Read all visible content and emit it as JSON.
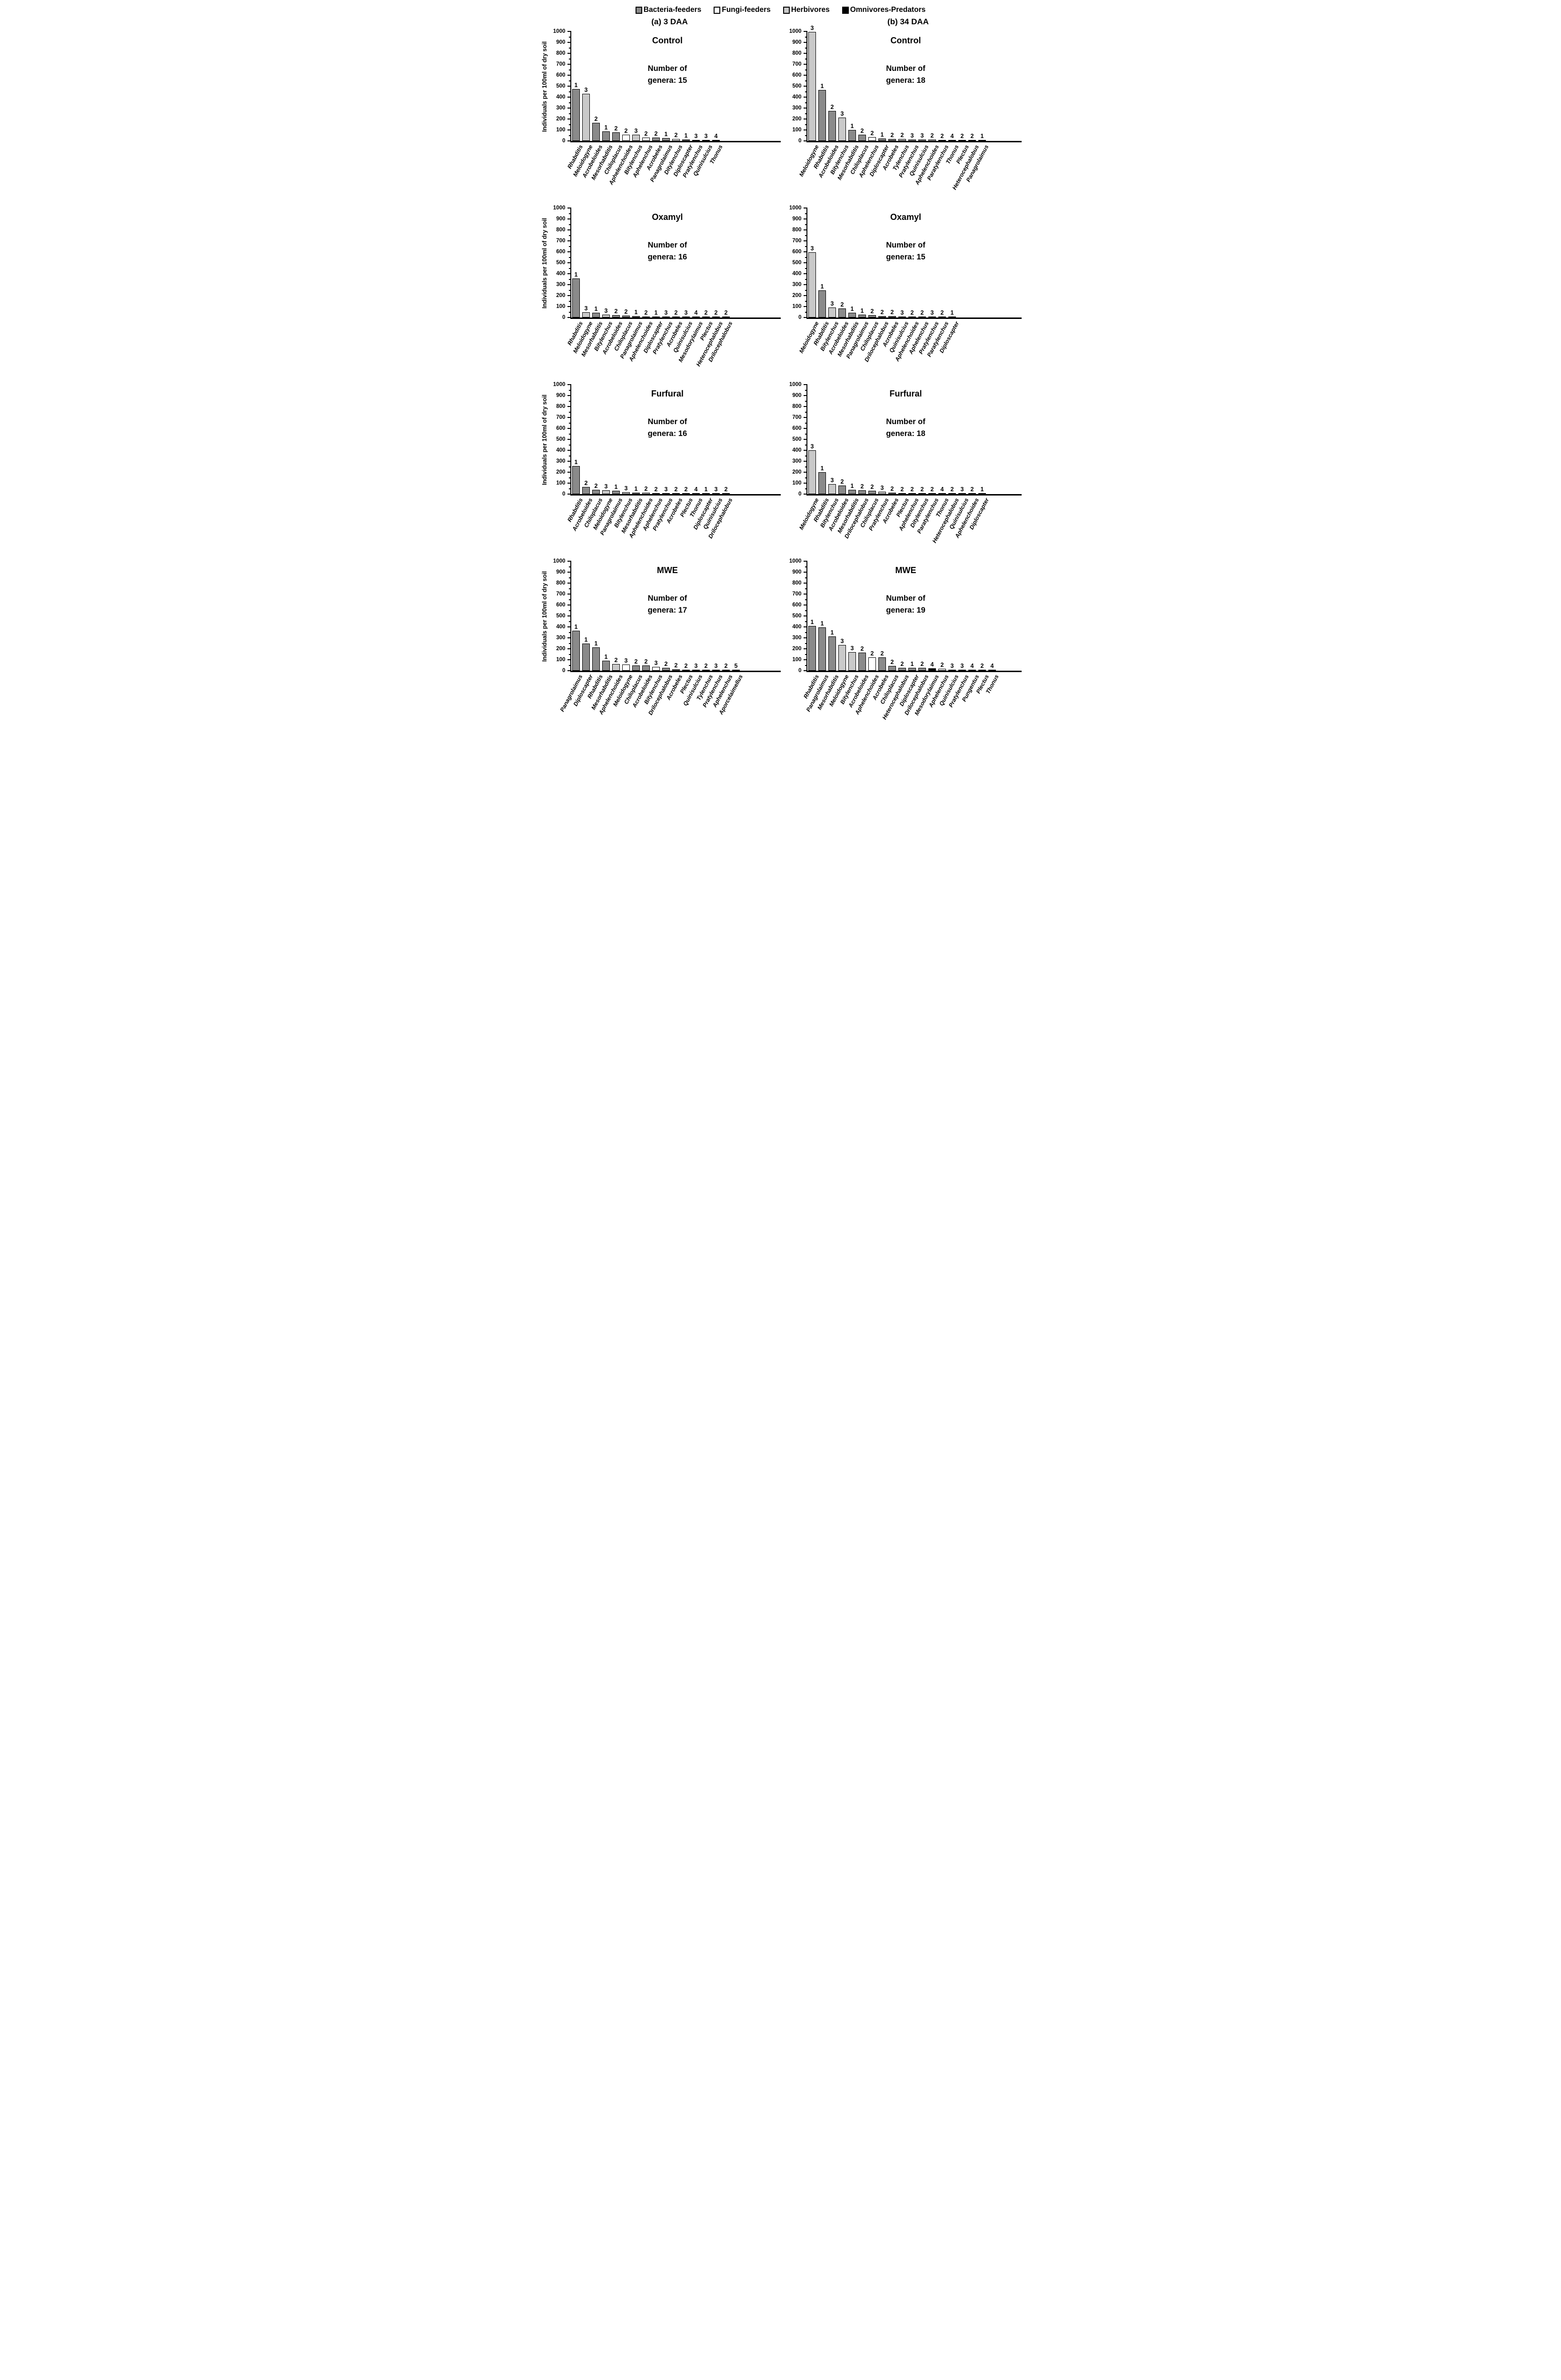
{
  "legend": {
    "items": [
      {
        "label": "Bacteria-feeders",
        "fill": "dark"
      },
      {
        "label": "Fungi-feeders",
        "fill": "white"
      },
      {
        "label": "Herbivores",
        "fill": "light"
      },
      {
        "label": "Omnivores-Predators",
        "fill": "black"
      }
    ]
  },
  "column_headers": {
    "a": "(a) 3 DAA",
    "b": "(b) 34 DAA"
  },
  "y_axis": {
    "label": "Individuals per 100ml of dry soil",
    "min": 0,
    "max": 1000,
    "major_step": 100,
    "minor_step": 50,
    "tick_labels": [
      "0",
      "100",
      "200",
      "300",
      "400",
      "500",
      "600",
      "700",
      "800",
      "900",
      "1000"
    ]
  },
  "colors": {
    "dark": "#8a8a8a",
    "light": "#c9c9c9",
    "white": "#ffffff",
    "black": "#000000"
  },
  "chart_data": [
    {
      "type": "bar",
      "column": "a",
      "treatment": "Control",
      "annotation_lines": [
        "Number of",
        "genera: 15"
      ],
      "ylim": [
        0,
        1000
      ],
      "grid": false,
      "bars": [
        {
          "genus": "Rhabditis",
          "value": 475,
          "cp": "1",
          "fill": "dark"
        },
        {
          "genus": "Meloidogyne",
          "value": 430,
          "cp": "3",
          "fill": "light"
        },
        {
          "genus": "Acrobeloides",
          "value": 165,
          "cp": "2",
          "fill": "dark"
        },
        {
          "genus": "Mesorhabditis",
          "value": 85,
          "cp": "1",
          "fill": "dark"
        },
        {
          "genus": "Chiloplacus",
          "value": 80,
          "cp": "2",
          "fill": "dark"
        },
        {
          "genus": "Aphelenchoides",
          "value": 57,
          "cp": "2",
          "fill": "white"
        },
        {
          "genus": "Bitylenchus",
          "value": 57,
          "cp": "3",
          "fill": "light"
        },
        {
          "genus": "Aphelenchus",
          "value": 32,
          "cp": "2",
          "fill": "white"
        },
        {
          "genus": "Acrobeles",
          "value": 30,
          "cp": "2",
          "fill": "dark"
        },
        {
          "genus": "Panagrolaimus",
          "value": 25,
          "cp": "1",
          "fill": "dark"
        },
        {
          "genus": "Ditylenchus",
          "value": 18,
          "cp": "2",
          "fill": "white"
        },
        {
          "genus": "Diploscapter",
          "value": 13,
          "cp": "1",
          "fill": "dark"
        },
        {
          "genus": "Pratylenchus",
          "value": 10,
          "cp": "3",
          "fill": "light"
        },
        {
          "genus": "Quinisulcius",
          "value": 10,
          "cp": "3",
          "fill": "light"
        },
        {
          "genus": "Thonus",
          "value": 7,
          "cp": "4",
          "fill": "black"
        }
      ]
    },
    {
      "type": "bar",
      "column": "b",
      "treatment": "Control",
      "annotation_lines": [
        "Number of",
        "genera: 18"
      ],
      "ylim": [
        0,
        1000
      ],
      "grid": false,
      "bars": [
        {
          "genus": "Meloidogyne",
          "value": 995,
          "cp": "3",
          "fill": "light"
        },
        {
          "genus": "Rhabditis",
          "value": 465,
          "cp": "1",
          "fill": "dark"
        },
        {
          "genus": "Acrobeloides",
          "value": 275,
          "cp": "2",
          "fill": "dark"
        },
        {
          "genus": "Bitylenchus",
          "value": 215,
          "cp": "3",
          "fill": "light"
        },
        {
          "genus": "Mesorhabditis",
          "value": 98,
          "cp": "1",
          "fill": "dark"
        },
        {
          "genus": "Chiloplacus",
          "value": 58,
          "cp": "2",
          "fill": "dark"
        },
        {
          "genus": "Aphelenchus",
          "value": 35,
          "cp": "2",
          "fill": "white"
        },
        {
          "genus": "Diploscapter",
          "value": 20,
          "cp": "1",
          "fill": "dark"
        },
        {
          "genus": "Acrobeles",
          "value": 19,
          "cp": "2",
          "fill": "dark"
        },
        {
          "genus": "Tylenchus",
          "value": 16,
          "cp": "2",
          "fill": "light"
        },
        {
          "genus": "Pratylenchus",
          "value": 15,
          "cp": "3",
          "fill": "light"
        },
        {
          "genus": "Quinisulcius",
          "value": 13,
          "cp": "3",
          "fill": "light"
        },
        {
          "genus": "Aphelenchoides",
          "value": 13,
          "cp": "2",
          "fill": "white"
        },
        {
          "genus": "Paratylenchus",
          "value": 8,
          "cp": "2",
          "fill": "light"
        },
        {
          "genus": "Thonus",
          "value": 8,
          "cp": "4",
          "fill": "black"
        },
        {
          "genus": "Plectus",
          "value": 6,
          "cp": "2",
          "fill": "dark"
        },
        {
          "genus": "Heterocephalobus",
          "value": 6,
          "cp": "2",
          "fill": "dark"
        },
        {
          "genus": "Panagrolaimus",
          "value": 5,
          "cp": "1",
          "fill": "dark"
        }
      ]
    },
    {
      "type": "bar",
      "column": "a",
      "treatment": "Oxamyl",
      "annotation_lines": [
        "Number of",
        "genera: 16"
      ],
      "ylim": [
        0,
        1000
      ],
      "grid": false,
      "bars": [
        {
          "genus": "Rhabditis",
          "value": 355,
          "cp": "1",
          "fill": "dark"
        },
        {
          "genus": "Meloidogyne",
          "value": 48,
          "cp": "3",
          "fill": "light"
        },
        {
          "genus": "Mesorhabditis",
          "value": 42,
          "cp": "1",
          "fill": "dark"
        },
        {
          "genus": "Bitylenchus",
          "value": 28,
          "cp": "3",
          "fill": "light"
        },
        {
          "genus": "Acrobeloides",
          "value": 20,
          "cp": "2",
          "fill": "dark"
        },
        {
          "genus": "Chiloplacus",
          "value": 17,
          "cp": "2",
          "fill": "dark"
        },
        {
          "genus": "Panagrolaimus",
          "value": 13,
          "cp": "1",
          "fill": "dark"
        },
        {
          "genus": "Aphelenchoides",
          "value": 9,
          "cp": "2",
          "fill": "white"
        },
        {
          "genus": "Diploscapter",
          "value": 5,
          "cp": "1",
          "fill": "dark"
        },
        {
          "genus": "Pratylenchus",
          "value": 4,
          "cp": "3",
          "fill": "light"
        },
        {
          "genus": "Acrobeles",
          "value": 4,
          "cp": "2",
          "fill": "dark"
        },
        {
          "genus": "Quinisulcius",
          "value": 3,
          "cp": "3",
          "fill": "light"
        },
        {
          "genus": "Mesodorylaimus",
          "value": 3,
          "cp": "4",
          "fill": "black"
        },
        {
          "genus": "Plectus",
          "value": 2,
          "cp": "2",
          "fill": "dark"
        },
        {
          "genus": "Heterocephalobus",
          "value": 2,
          "cp": "2",
          "fill": "dark"
        },
        {
          "genus": "Drilocephalobus",
          "value": 2,
          "cp": "2",
          "fill": "dark"
        }
      ]
    },
    {
      "type": "bar",
      "column": "b",
      "treatment": "Oxamyl",
      "annotation_lines": [
        "Number of",
        "genera: 15"
      ],
      "ylim": [
        0,
        1000
      ],
      "grid": false,
      "bars": [
        {
          "genus": "Meloidogyne",
          "value": 595,
          "cp": "3",
          "fill": "light"
        },
        {
          "genus": "Rhabditis",
          "value": 248,
          "cp": "1",
          "fill": "dark"
        },
        {
          "genus": "Bitylenchus",
          "value": 93,
          "cp": "3",
          "fill": "light"
        },
        {
          "genus": "Acrobeloides",
          "value": 83,
          "cp": "2",
          "fill": "dark"
        },
        {
          "genus": "Mesorhabditis",
          "value": 45,
          "cp": "1",
          "fill": "dark"
        },
        {
          "genus": "Panagrolaimus",
          "value": 25,
          "cp": "1",
          "fill": "dark"
        },
        {
          "genus": "Chiloplacus",
          "value": 22,
          "cp": "2",
          "fill": "dark"
        },
        {
          "genus": "Drilocephalobus",
          "value": 15,
          "cp": "2",
          "fill": "dark"
        },
        {
          "genus": "Acrobeles",
          "value": 13,
          "cp": "2",
          "fill": "dark"
        },
        {
          "genus": "Quinisulcius",
          "value": 8,
          "cp": "3",
          "fill": "light"
        },
        {
          "genus": "Aphelenchoides",
          "value": 7,
          "cp": "2",
          "fill": "white"
        },
        {
          "genus": "Aphelenchus",
          "value": 6,
          "cp": "2",
          "fill": "white"
        },
        {
          "genus": "Pratylenchus",
          "value": 5,
          "cp": "3",
          "fill": "light"
        },
        {
          "genus": "Paratylenchus",
          "value": 4,
          "cp": "2",
          "fill": "light"
        },
        {
          "genus": "Diploscapter",
          "value": 2,
          "cp": "1",
          "fill": "dark"
        }
      ]
    },
    {
      "type": "bar",
      "column": "a",
      "treatment": "Furfural",
      "annotation_lines": [
        "Number of",
        "genera: 16"
      ],
      "ylim": [
        0,
        1000
      ],
      "grid": false,
      "bars": [
        {
          "genus": "Rhabditis",
          "value": 255,
          "cp": "1",
          "fill": "dark"
        },
        {
          "genus": "Acrobeloides",
          "value": 65,
          "cp": "2",
          "fill": "dark"
        },
        {
          "genus": "Chiloplacus",
          "value": 38,
          "cp": "2",
          "fill": "dark"
        },
        {
          "genus": "Meloidogyne",
          "value": 36,
          "cp": "3",
          "fill": "light"
        },
        {
          "genus": "Panagrolaimus",
          "value": 32,
          "cp": "1",
          "fill": "dark"
        },
        {
          "genus": "Bitylenchus",
          "value": 18,
          "cp": "3",
          "fill": "light"
        },
        {
          "genus": "Mesorhabditis",
          "value": 15,
          "cp": "1",
          "fill": "dark"
        },
        {
          "genus": "Aphelenchoides",
          "value": 12,
          "cp": "2",
          "fill": "white"
        },
        {
          "genus": "Aphelenchus",
          "value": 9,
          "cp": "2",
          "fill": "white"
        },
        {
          "genus": "Pratylenchus",
          "value": 5,
          "cp": "3",
          "fill": "light"
        },
        {
          "genus": "Acrobeles",
          "value": 4,
          "cp": "2",
          "fill": "dark"
        },
        {
          "genus": "Plectus",
          "value": 4,
          "cp": "2",
          "fill": "dark"
        },
        {
          "genus": "Thonus",
          "value": 3,
          "cp": "4",
          "fill": "black"
        },
        {
          "genus": "Diploscapter",
          "value": 3,
          "cp": "1",
          "fill": "dark"
        },
        {
          "genus": "Quinisulcius",
          "value": 3,
          "cp": "3",
          "fill": "light"
        },
        {
          "genus": "Drilocephalobus",
          "value": 2,
          "cp": "2",
          "fill": "dark"
        }
      ]
    },
    {
      "type": "bar",
      "column": "b",
      "treatment": "Furfural",
      "annotation_lines": [
        "Number of",
        "genera: 18"
      ],
      "ylim": [
        0,
        1000
      ],
      "grid": false,
      "bars": [
        {
          "genus": "Meloidogyne",
          "value": 400,
          "cp": "3",
          "fill": "light"
        },
        {
          "genus": "Rhabditis",
          "value": 200,
          "cp": "1",
          "fill": "dark"
        },
        {
          "genus": "Bitylenchus",
          "value": 92,
          "cp": "3",
          "fill": "light"
        },
        {
          "genus": "Acrobeloides",
          "value": 80,
          "cp": "2",
          "fill": "dark"
        },
        {
          "genus": "Mesorhabditis",
          "value": 40,
          "cp": "1",
          "fill": "dark"
        },
        {
          "genus": "Drilocephalobus",
          "value": 35,
          "cp": "2",
          "fill": "dark"
        },
        {
          "genus": "Chiloplacus",
          "value": 30,
          "cp": "2",
          "fill": "dark"
        },
        {
          "genus": "Pratylenchus",
          "value": 22,
          "cp": "3",
          "fill": "light"
        },
        {
          "genus": "Acrobeles",
          "value": 13,
          "cp": "2",
          "fill": "dark"
        },
        {
          "genus": "Plectus",
          "value": 8,
          "cp": "2",
          "fill": "dark"
        },
        {
          "genus": "Aphelenchus",
          "value": 7,
          "cp": "2",
          "fill": "white"
        },
        {
          "genus": "Ditylenchus",
          "value": 5,
          "cp": "2",
          "fill": "white"
        },
        {
          "genus": "Paratylenchus",
          "value": 4,
          "cp": "2",
          "fill": "light"
        },
        {
          "genus": "Thonus",
          "value": 4,
          "cp": "4",
          "fill": "black"
        },
        {
          "genus": "Heterocephalobus",
          "value": 3,
          "cp": "2",
          "fill": "dark"
        },
        {
          "genus": "Quinisulcius",
          "value": 3,
          "cp": "3",
          "fill": "light"
        },
        {
          "genus": "Aphelenchoides",
          "value": 2,
          "cp": "2",
          "fill": "white"
        },
        {
          "genus": "Diploscapter",
          "value": 2,
          "cp": "1",
          "fill": "dark"
        }
      ]
    },
    {
      "type": "bar",
      "column": "a",
      "treatment": "MWE",
      "annotation_lines": [
        "Number of",
        "genera: 17"
      ],
      "ylim": [
        0,
        1000
      ],
      "grid": false,
      "bars": [
        {
          "genus": "Panagrolaimus",
          "value": 365,
          "cp": "1",
          "fill": "dark"
        },
        {
          "genus": "Diploscapter",
          "value": 248,
          "cp": "1",
          "fill": "dark"
        },
        {
          "genus": "Rhabditis",
          "value": 215,
          "cp": "1",
          "fill": "dark"
        },
        {
          "genus": "Mesorhabditis",
          "value": 90,
          "cp": "1",
          "fill": "dark"
        },
        {
          "genus": "Aphelenchoides",
          "value": 62,
          "cp": "2",
          "fill": "light"
        },
        {
          "genus": "Meloidogyne",
          "value": 57,
          "cp": "3",
          "fill": "white"
        },
        {
          "genus": "Chiloplacus",
          "value": 50,
          "cp": "2",
          "fill": "dark"
        },
        {
          "genus": "Acrobeloides",
          "value": 48,
          "cp": "2",
          "fill": "dark"
        },
        {
          "genus": "Bitylenchus",
          "value": 35,
          "cp": "3",
          "fill": "white"
        },
        {
          "genus": "Drilocephalobus",
          "value": 25,
          "cp": "2",
          "fill": "dark"
        },
        {
          "genus": "Acrobeles",
          "value": 12,
          "cp": "2",
          "fill": "dark"
        },
        {
          "genus": "Plectus",
          "value": 8,
          "cp": "2",
          "fill": "dark"
        },
        {
          "genus": "Quinisulcius",
          "value": 8,
          "cp": "3",
          "fill": "light"
        },
        {
          "genus": "Tylenchus",
          "value": 5,
          "cp": "2",
          "fill": "light"
        },
        {
          "genus": "Pratylenchus",
          "value": 4,
          "cp": "3",
          "fill": "light"
        },
        {
          "genus": "Aphelenchus",
          "value": 3,
          "cp": "2",
          "fill": "white"
        },
        {
          "genus": "Aporcelaimellus",
          "value": 3,
          "cp": "5",
          "fill": "black"
        }
      ]
    },
    {
      "type": "bar",
      "column": "b",
      "treatment": "MWE",
      "annotation_lines": [
        "Number of",
        "genera: 19"
      ],
      "ylim": [
        0,
        1000
      ],
      "grid": false,
      "bars": [
        {
          "genus": "Rhabditis",
          "value": 410,
          "cp": "1",
          "fill": "dark"
        },
        {
          "genus": "Panagrolaimus",
          "value": 395,
          "cp": "1",
          "fill": "dark"
        },
        {
          "genus": "Mesorhabditis",
          "value": 315,
          "cp": "1",
          "fill": "dark"
        },
        {
          "genus": "Meloidogyne",
          "value": 235,
          "cp": "3",
          "fill": "light"
        },
        {
          "genus": "Bitylenchus",
          "value": 170,
          "cp": "3",
          "fill": "light"
        },
        {
          "genus": "Acrobeloides",
          "value": 165,
          "cp": "2",
          "fill": "dark"
        },
        {
          "genus": "Aphelenchoides",
          "value": 120,
          "cp": "2",
          "fill": "white"
        },
        {
          "genus": "Acrobeles",
          "value": 120,
          "cp": "2",
          "fill": "dark"
        },
        {
          "genus": "Chiloplacus",
          "value": 45,
          "cp": "2",
          "fill": "dark"
        },
        {
          "genus": "Heterocephalobus",
          "value": 28,
          "cp": "2",
          "fill": "dark"
        },
        {
          "genus": "Diploscapter",
          "value": 25,
          "cp": "1",
          "fill": "dark"
        },
        {
          "genus": "Drilocephalobus",
          "value": 25,
          "cp": "2",
          "fill": "dark"
        },
        {
          "genus": "Mesodorylaimus",
          "value": 20,
          "cp": "4",
          "fill": "black"
        },
        {
          "genus": "Aphelenchus",
          "value": 17,
          "cp": "2",
          "fill": "white"
        },
        {
          "genus": "Quinisulcius",
          "value": 10,
          "cp": "3",
          "fill": "light"
        },
        {
          "genus": "Pratylenchus",
          "value": 10,
          "cp": "3",
          "fill": "light"
        },
        {
          "genus": "Pungentus",
          "value": 8,
          "cp": "4",
          "fill": "black"
        },
        {
          "genus": "Plectus",
          "value": 8,
          "cp": "2",
          "fill": "dark"
        },
        {
          "genus": "Thonus",
          "value": 6,
          "cp": "4",
          "fill": "black"
        }
      ]
    }
  ]
}
